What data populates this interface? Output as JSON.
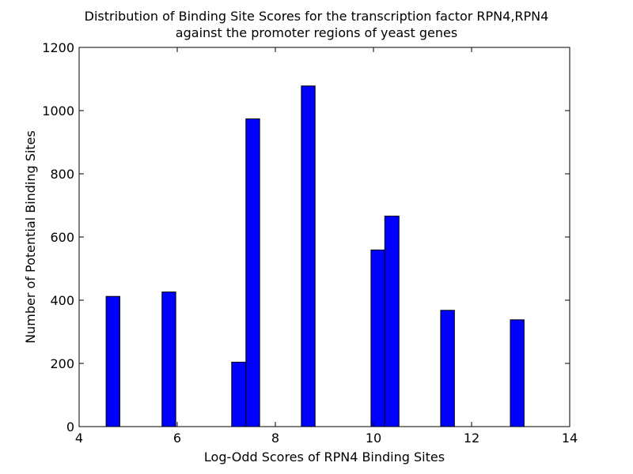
{
  "chart_data": {
    "type": "bar",
    "title_line1": "Distribution of Binding Site Scores for the transcription factor RPN4,RPN4",
    "title_line2": "against the promoter regions of yeast genes",
    "xlabel": "Log-Odd Scores of RPN4 Binding Sites",
    "ylabel": "Number of Potential Binding Sites",
    "xlim": [
      4,
      14
    ],
    "ylim": [
      0,
      1200
    ],
    "xticks": [
      4,
      6,
      8,
      10,
      12,
      14
    ],
    "yticks": [
      0,
      200,
      400,
      600,
      800,
      1000,
      1200
    ],
    "bar_color": "#0000ff",
    "bars": [
      {
        "x0": 4.55,
        "x1": 4.83,
        "value": 412
      },
      {
        "x0": 5.69,
        "x1": 5.97,
        "value": 426
      },
      {
        "x0": 7.11,
        "x1": 7.4,
        "value": 204
      },
      {
        "x0": 7.4,
        "x1": 7.68,
        "value": 974
      },
      {
        "x0": 8.53,
        "x1": 8.81,
        "value": 1078
      },
      {
        "x0": 9.95,
        "x1": 10.23,
        "value": 559
      },
      {
        "x0": 10.23,
        "x1": 10.52,
        "value": 666
      },
      {
        "x0": 11.37,
        "x1": 11.65,
        "value": 368
      },
      {
        "x0": 12.79,
        "x1": 13.07,
        "value": 338
      }
    ]
  }
}
